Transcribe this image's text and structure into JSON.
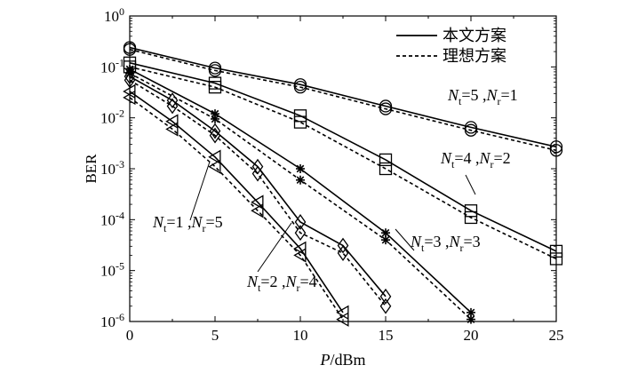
{
  "chart_data": {
    "type": "line",
    "xlabel_italic": "P",
    "xlabel_rest": "/dBm",
    "ylabel": "BER",
    "xlim": [
      0,
      25
    ],
    "ylim_log10": [
      -6,
      0
    ],
    "y_scale": "log",
    "grid": false,
    "legend_position": "top-right",
    "x_ticks": [
      0,
      5,
      10,
      15,
      20,
      25
    ],
    "y_tick_exponents": [
      0,
      -1,
      -2,
      -3,
      -4,
      -5,
      -6
    ],
    "legend": [
      {
        "label": "本文方案",
        "style": "solid"
      },
      {
        "label": "理想方案",
        "style": "dashed"
      }
    ],
    "series": [
      {
        "id": "nt5-nr1",
        "marker": "circle",
        "label_parts": [
          "N",
          "t",
          "=5 ,",
          "N",
          "r",
          "=1"
        ],
        "x": [
          0,
          5,
          10,
          15,
          20,
          25
        ],
        "proposed": [
          0.24,
          0.095,
          0.045,
          0.017,
          0.0065,
          0.0027
        ],
        "ideal": [
          0.22,
          0.085,
          0.04,
          0.015,
          0.0057,
          0.0023
        ]
      },
      {
        "id": "nt4-nr2",
        "marker": "square",
        "label_parts": [
          "N",
          "t",
          "=4 ,",
          "N",
          "r",
          "=2"
        ],
        "x": [
          0,
          5,
          10,
          15,
          20,
          25
        ],
        "proposed": [
          0.12,
          0.048,
          0.011,
          0.0015,
          0.00015,
          2.4e-05
        ],
        "ideal": [
          0.1,
          0.04,
          0.0082,
          0.001,
          0.00011,
          1.7e-05
        ]
      },
      {
        "id": "nt3-nr3",
        "marker": "star",
        "label_parts": [
          "N",
          "t",
          "=3 ,",
          "N",
          "r",
          "=3"
        ],
        "x": [
          0,
          5,
          10,
          15,
          20
        ],
        "proposed": [
          0.09,
          0.012,
          0.001,
          5.5e-05,
          1.5e-06
        ],
        "ideal": [
          0.075,
          0.0095,
          0.0006,
          4e-05,
          1.1e-06
        ]
      },
      {
        "id": "nt2-nr4",
        "marker": "diamond",
        "label_parts": [
          "N",
          "t",
          "=2 ,",
          "N",
          "r",
          "=4"
        ],
        "x": [
          0,
          2.5,
          5,
          7.5,
          10,
          12.5,
          15
        ],
        "proposed": [
          0.065,
          0.022,
          0.0055,
          0.0011,
          9e-05,
          3.1e-05,
          3.1e-06
        ],
        "ideal": [
          0.055,
          0.017,
          0.0045,
          0.0008,
          5.5e-05,
          2.2e-05,
          2e-06
        ]
      },
      {
        "id": "nt1-nr5",
        "marker": "triangle-left",
        "label_parts": [
          "N",
          "t",
          "=1 ,",
          "N",
          "r",
          "=5"
        ],
        "x": [
          0,
          2.5,
          5,
          7.5,
          10,
          12.5
        ],
        "proposed": [
          0.033,
          0.0085,
          0.0017,
          0.00022,
          2.7e-05,
          1.5e-06
        ],
        "ideal": [
          0.025,
          0.006,
          0.0011,
          0.00015,
          2e-05,
          1.1e-06
        ]
      }
    ]
  }
}
